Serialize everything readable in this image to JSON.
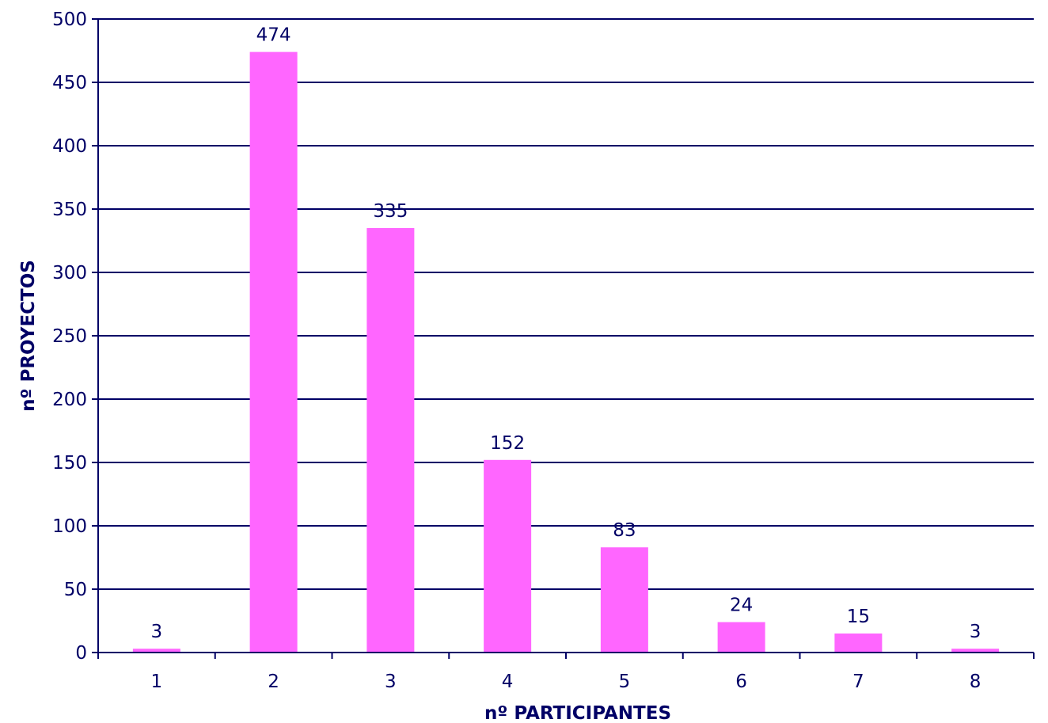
{
  "colors": {
    "bar": "#FF66FF",
    "axis": "#000066",
    "text": "#000066"
  },
  "chart_data": {
    "type": "bar",
    "categories": [
      "1",
      "2",
      "3",
      "4",
      "5",
      "6",
      "7",
      "8"
    ],
    "values": [
      3,
      474,
      335,
      152,
      83,
      24,
      15,
      3
    ],
    "data_labels": [
      "3",
      "474",
      "335",
      "152",
      "83",
      "24",
      "15",
      "3"
    ],
    "title": "",
    "xlabel": "nº PARTICIPANTES",
    "ylabel": "nº PROYECTOS",
    "ylim": [
      0,
      500
    ],
    "yticks": [
      0,
      50,
      100,
      150,
      200,
      250,
      300,
      350,
      400,
      450,
      500
    ],
    "ytick_labels": [
      "0",
      "50",
      "100",
      "150",
      "200",
      "250",
      "300",
      "350",
      "400",
      "450",
      "500"
    ],
    "grid": true,
    "legend": "none"
  }
}
